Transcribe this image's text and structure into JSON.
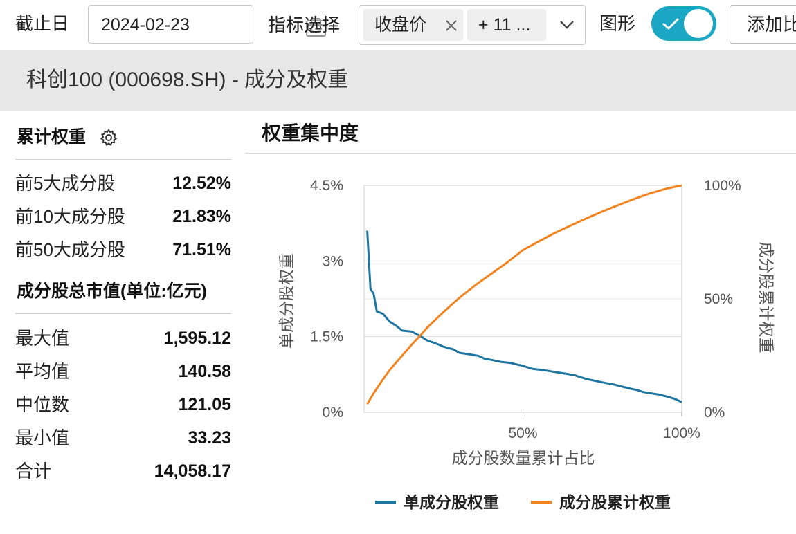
{
  "toolbar": {
    "date_label": "截止日",
    "date_value": "2024-02-23",
    "indicator_label": "指标选择",
    "chip_selected": "收盘价",
    "chip_more": "+ 11 ...",
    "chart_label": "图形",
    "add_label": "添加比较"
  },
  "banner": {
    "title": "科创100 (000698.SH) - 成分及权重"
  },
  "left": {
    "weight_title": "累计权重",
    "weight_rows": [
      {
        "label": "前5大成分股",
        "value": "12.52%"
      },
      {
        "label": "前10大成分股",
        "value": "21.83%"
      },
      {
        "label": "前50大成分股",
        "value": "71.51%"
      }
    ],
    "cap_title": "成分股总市值(单位:亿元)",
    "cap_rows": [
      {
        "label": "最大值",
        "value": "1,595.12"
      },
      {
        "label": "平均值",
        "value": "140.58"
      },
      {
        "label": "中位数",
        "value": "121.05"
      },
      {
        "label": "最小值",
        "value": "33.23"
      },
      {
        "label": "合计",
        "value": "14,058.17"
      }
    ]
  },
  "chart": {
    "title": "权重集中度"
  },
  "colors": {
    "accent": "#1ba7c4",
    "series_single": "#1e76a0",
    "series_cumulative": "#f0831e"
  },
  "chart_data": {
    "type": "line",
    "xlabel": "成分股数量累计占比",
    "ylabel_left": "单成分股权重",
    "ylabel_right": "成分股累计权重",
    "x_ticks": [
      "50%",
      "100%"
    ],
    "x_range": [
      0,
      100
    ],
    "y_left_ticks": [
      "0%",
      "1.5%",
      "3%",
      "4.5%"
    ],
    "y_left_range": [
      0,
      4.5
    ],
    "y_right_ticks": [
      "0%",
      "50%",
      "100%"
    ],
    "y_right_range": [
      0,
      100
    ],
    "grid": true,
    "legend_position": "bottom",
    "series": [
      {
        "name": "单成分股权重",
        "axis": "left",
        "x": [
          1,
          2,
          3,
          4,
          6,
          8,
          10,
          12,
          15,
          18,
          20,
          22,
          25,
          28,
          30,
          33,
          36,
          38,
          40,
          43,
          46,
          48,
          50,
          53,
          56,
          58,
          60,
          63,
          66,
          68,
          70,
          73,
          76,
          78,
          80,
          83,
          86,
          88,
          90,
          93,
          96,
          98,
          100
        ],
        "values": [
          3.6,
          2.45,
          2.35,
          2.0,
          1.95,
          1.8,
          1.72,
          1.62,
          1.6,
          1.5,
          1.42,
          1.38,
          1.3,
          1.25,
          1.18,
          1.15,
          1.12,
          1.06,
          1.04,
          1.0,
          0.98,
          0.95,
          0.92,
          0.86,
          0.84,
          0.82,
          0.8,
          0.77,
          0.74,
          0.7,
          0.66,
          0.62,
          0.58,
          0.56,
          0.53,
          0.48,
          0.44,
          0.4,
          0.38,
          0.35,
          0.3,
          0.26,
          0.2
        ]
      },
      {
        "name": "成分股累计权重",
        "axis": "right",
        "x": [
          1,
          2,
          3,
          4,
          5,
          6,
          8,
          10,
          12,
          15,
          18,
          20,
          25,
          30,
          35,
          40,
          45,
          50,
          55,
          60,
          65,
          70,
          75,
          80,
          85,
          90,
          95,
          100
        ],
        "values": [
          3.6,
          6,
          8.4,
          10.5,
          12.5,
          14.6,
          18.5,
          21.8,
          25,
          29.8,
          34.3,
          37.5,
          44.2,
          50.5,
          56,
          61,
          66,
          71.5,
          75.3,
          79,
          82.3,
          85.5,
          88.5,
          91.3,
          94,
          96.5,
          98.5,
          100
        ]
      }
    ]
  }
}
